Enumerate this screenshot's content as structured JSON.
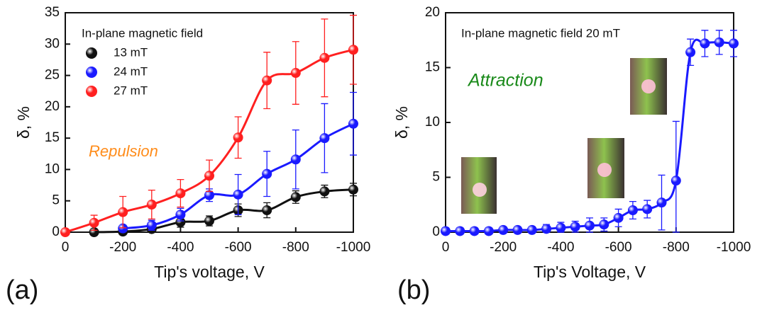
{
  "chart_data": [
    {
      "type": "line",
      "panel_label": "(a)",
      "xlabel": "Tip's voltage, V",
      "ylabel": "δ, %",
      "legend_title": "In-plane magnetic field",
      "annotation": "Repulsion",
      "annotation_color": "#ff8c1a",
      "x": [
        0,
        -100,
        -200,
        -300,
        -400,
        -500,
        -600,
        -700,
        -800,
        -900,
        -1000
      ],
      "xlim": [
        0,
        -1000
      ],
      "xticks": [
        0,
        -200,
        -400,
        -600,
        -800,
        -1000
      ],
      "ylim": [
        0,
        35
      ],
      "yticks": [
        0,
        5,
        10,
        15,
        20,
        25,
        30,
        35
      ],
      "series": [
        {
          "name": "13 mT",
          "color": "#111111",
          "values": [
            null,
            0,
            0.1,
            0.5,
            1.6,
            1.8,
            3.5,
            3.5,
            5.6,
            6.5,
            6.8
          ],
          "errors": [
            null,
            0.3,
            0.3,
            0.5,
            0.8,
            0.8,
            1,
            1.2,
            1,
            1,
            1
          ]
        },
        {
          "name": "24 mT",
          "color": "#1a1aff",
          "values": [
            null,
            null,
            0.6,
            1.1,
            2.8,
            5.9,
            6,
            9.3,
            11.6,
            15,
            17.3
          ],
          "errors": [
            null,
            null,
            0.5,
            0.8,
            1,
            1,
            3.2,
            3.6,
            4.7,
            5.5,
            5
          ]
        },
        {
          "name": "27 mT",
          "color": "#ff2020",
          "values": [
            0,
            1.5,
            3.2,
            4.4,
            6.2,
            9,
            15.1,
            24.2,
            25.4,
            27.8,
            29.1
          ],
          "errors": [
            null,
            1.2,
            2.5,
            2.3,
            2.2,
            2.5,
            3.3,
            4.5,
            5,
            6.2,
            5.5
          ]
        }
      ]
    },
    {
      "type": "line",
      "panel_label": "(b)",
      "xlabel": "Tip's Voltage, V",
      "ylabel": "δ, %",
      "legend_title": "In-plane magnetic field 20 mT",
      "annotation": "Attraction",
      "annotation_color": "#1a8a1a",
      "x": [
        0,
        -50,
        -100,
        -150,
        -200,
        -250,
        -300,
        -350,
        -400,
        -450,
        -500,
        -550,
        -600,
        -650,
        -700,
        -750,
        -800,
        -850,
        -900,
        -950,
        -1000
      ],
      "xlim": [
        0,
        -1000
      ],
      "xticks": [
        0,
        -200,
        -400,
        -600,
        -800,
        -1000
      ],
      "ylim": [
        0,
        20
      ],
      "yticks": [
        0,
        5,
        10,
        15,
        20
      ],
      "series": [
        {
          "color": "#1a1aff",
          "values": [
            0.1,
            0.1,
            0.1,
            0.1,
            0.2,
            0.2,
            0.2,
            0.3,
            0.4,
            0.5,
            0.6,
            0.7,
            1.3,
            2,
            2.1,
            2.7,
            4.7,
            16.4,
            17.2,
            17.3,
            17.2
          ],
          "errors": [
            0.3,
            0.3,
            0.3,
            0.3,
            0.3,
            0.3,
            0.3,
            0.4,
            0.5,
            0.5,
            0.7,
            0.6,
            0.8,
            0.8,
            0.8,
            2.5,
            5.4,
            1.2,
            1.2,
            1.1,
            1.2
          ]
        }
      ]
    }
  ]
}
